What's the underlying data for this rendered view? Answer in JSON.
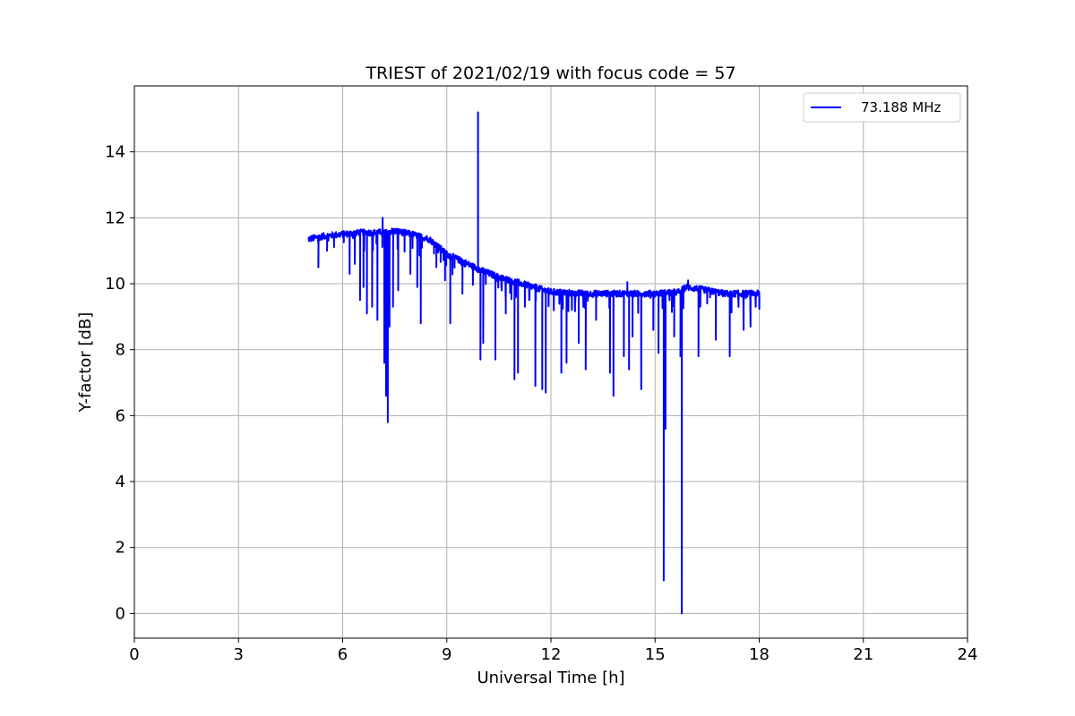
{
  "chart_data": {
    "type": "line",
    "title": "TRIEST of 2021/02/19 with focus code = 57",
    "xlabel": "Universal Time [h]",
    "ylabel": "Y-factor [dB]",
    "xlim": [
      0,
      24
    ],
    "ylim": [
      -0.75,
      16
    ],
    "xticks": [
      0,
      3,
      6,
      9,
      12,
      15,
      18,
      21,
      24
    ],
    "yticks": [
      0,
      2,
      4,
      6,
      8,
      10,
      12,
      14
    ],
    "grid": true,
    "legend_position": "top-right",
    "series": [
      {
        "name": "73.188 MHz",
        "color": "#0000ff",
        "baseline": [
          [
            5.0,
            11.35
          ],
          [
            5.5,
            11.45
          ],
          [
            6.0,
            11.5
          ],
          [
            6.5,
            11.55
          ],
          [
            7.0,
            11.55
          ],
          [
            7.5,
            11.6
          ],
          [
            8.0,
            11.5
          ],
          [
            8.5,
            11.35
          ],
          [
            9.0,
            10.9
          ],
          [
            9.5,
            10.65
          ],
          [
            10.0,
            10.4
          ],
          [
            10.5,
            10.2
          ],
          [
            11.0,
            10.05
          ],
          [
            11.5,
            9.9
          ],
          [
            12.0,
            9.75
          ],
          [
            13.0,
            9.7
          ],
          [
            14.0,
            9.7
          ],
          [
            15.0,
            9.7
          ],
          [
            15.7,
            9.75
          ],
          [
            15.9,
            9.9
          ],
          [
            16.5,
            9.8
          ],
          [
            17.0,
            9.7
          ],
          [
            18.0,
            9.7
          ]
        ],
        "spikes": [
          [
            5.3,
            10.5
          ],
          [
            5.55,
            11.0
          ],
          [
            6.2,
            10.3
          ],
          [
            6.35,
            10.6
          ],
          [
            6.5,
            9.5
          ],
          [
            6.6,
            9.9
          ],
          [
            6.7,
            9.1
          ],
          [
            6.85,
            9.3
          ],
          [
            7.0,
            8.9
          ],
          [
            7.15,
            12.0
          ],
          [
            7.2,
            7.6
          ],
          [
            7.25,
            6.6
          ],
          [
            7.3,
            5.8
          ],
          [
            7.35,
            8.7
          ],
          [
            7.45,
            9.3
          ],
          [
            7.6,
            9.8
          ],
          [
            7.95,
            10.3
          ],
          [
            8.15,
            9.9
          ],
          [
            8.25,
            8.8
          ],
          [
            8.7,
            10.5
          ],
          [
            8.95,
            10.1
          ],
          [
            9.1,
            8.8
          ],
          [
            9.45,
            9.7
          ],
          [
            9.9,
            15.2
          ],
          [
            9.97,
            7.7
          ],
          [
            10.05,
            8.2
          ],
          [
            10.4,
            7.7
          ],
          [
            10.7,
            9.1
          ],
          [
            10.95,
            7.1
          ],
          [
            11.05,
            7.3
          ],
          [
            11.25,
            9.3
          ],
          [
            11.55,
            6.9
          ],
          [
            11.75,
            6.8
          ],
          [
            11.85,
            6.7
          ],
          [
            12.3,
            7.3
          ],
          [
            12.45,
            7.6
          ],
          [
            12.8,
            8.2
          ],
          [
            13.0,
            7.4
          ],
          [
            13.3,
            8.9
          ],
          [
            13.7,
            7.3
          ],
          [
            13.8,
            6.6
          ],
          [
            14.1,
            7.8
          ],
          [
            14.2,
            10.05
          ],
          [
            14.25,
            7.4
          ],
          [
            14.35,
            8.4
          ],
          [
            14.6,
            6.8
          ],
          [
            14.95,
            8.6
          ],
          [
            15.1,
            7.9
          ],
          [
            15.25,
            1.0
          ],
          [
            15.3,
            5.6
          ],
          [
            15.55,
            8.4
          ],
          [
            15.73,
            7.8
          ],
          [
            15.77,
            0.0
          ],
          [
            15.95,
            10.1
          ],
          [
            16.25,
            7.8
          ],
          [
            16.5,
            9.4
          ],
          [
            16.75,
            8.3
          ],
          [
            17.15,
            7.8
          ],
          [
            17.55,
            8.6
          ],
          [
            17.75,
            8.7
          ],
          [
            17.9,
            9.3
          ]
        ]
      }
    ]
  }
}
